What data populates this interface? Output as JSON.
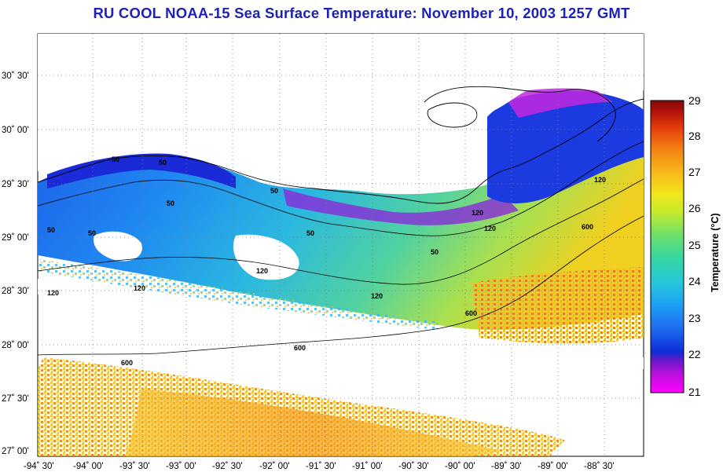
{
  "title": "RU COOL  NOAA-15  Sea Surface Temperature:  November 10, 2003 1257 GMT",
  "map": {
    "lon_labels": [
      "-94˚ 30'",
      "-94˚ 00'",
      "-93˚ 30'",
      "-93˚ 00'",
      "-92˚ 30'",
      "-92˚ 00'",
      "-91˚ 30'",
      "-91˚ 00'",
      "-90˚ 30'",
      "-90˚ 00'",
      "-89˚ 30'",
      "-89˚ 00'",
      "-88˚ 30'"
    ],
    "lat_labels": [
      "30˚ 30'",
      "30˚ 00'",
      "29˚ 30'",
      "29˚ 00'",
      "28˚ 30'",
      "28˚ 00'",
      "27˚ 30'",
      "27˚ 00'"
    ],
    "contour_labels": [
      "50",
      "50",
      "50",
      "50",
      "50",
      "50",
      "50",
      "50",
      "120",
      "120",
      "120",
      "120",
      "120",
      "120",
      "120",
      "600",
      "600",
      "600",
      "600"
    ],
    "grid": "dotted"
  },
  "colorbar": {
    "title": "Temperature (°C)",
    "ticks": [
      "29",
      "28",
      "27",
      "26",
      "25",
      "24",
      "23",
      "22",
      "21"
    ],
    "colors": [
      "#ff00ff",
      "#6a17c8",
      "#0d2dd9",
      "#1e6cf0",
      "#1ea0f5",
      "#28c8d8",
      "#35d6a3",
      "#6ee06a",
      "#c8ea2c",
      "#f2e61a",
      "#f7b51a",
      "#f27d12",
      "#e23a0a",
      "#b5120a",
      "#820a0a"
    ]
  }
}
